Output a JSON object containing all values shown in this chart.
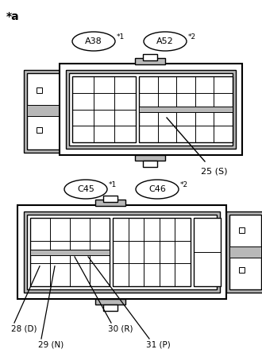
{
  "bg_color": "#ffffff",
  "line_color": "#000000",
  "gray_color": "#b8b8b8",
  "fig_width": 3.3,
  "fig_height": 4.49,
  "star_a_label": "*a",
  "connector1_label": "A38",
  "connector1_star": "*1",
  "connector2_label": "A52",
  "connector2_star": "*2",
  "pin25_label": "25 (S)",
  "connector3_label": "C45",
  "connector3_star": "*1",
  "connector4_label": "C46",
  "connector4_star": "*2",
  "pin28_label": "28 (D)",
  "pin29_label": "29 (N)",
  "pin30_label": "30 (R)",
  "pin31_label": "31 (P)"
}
